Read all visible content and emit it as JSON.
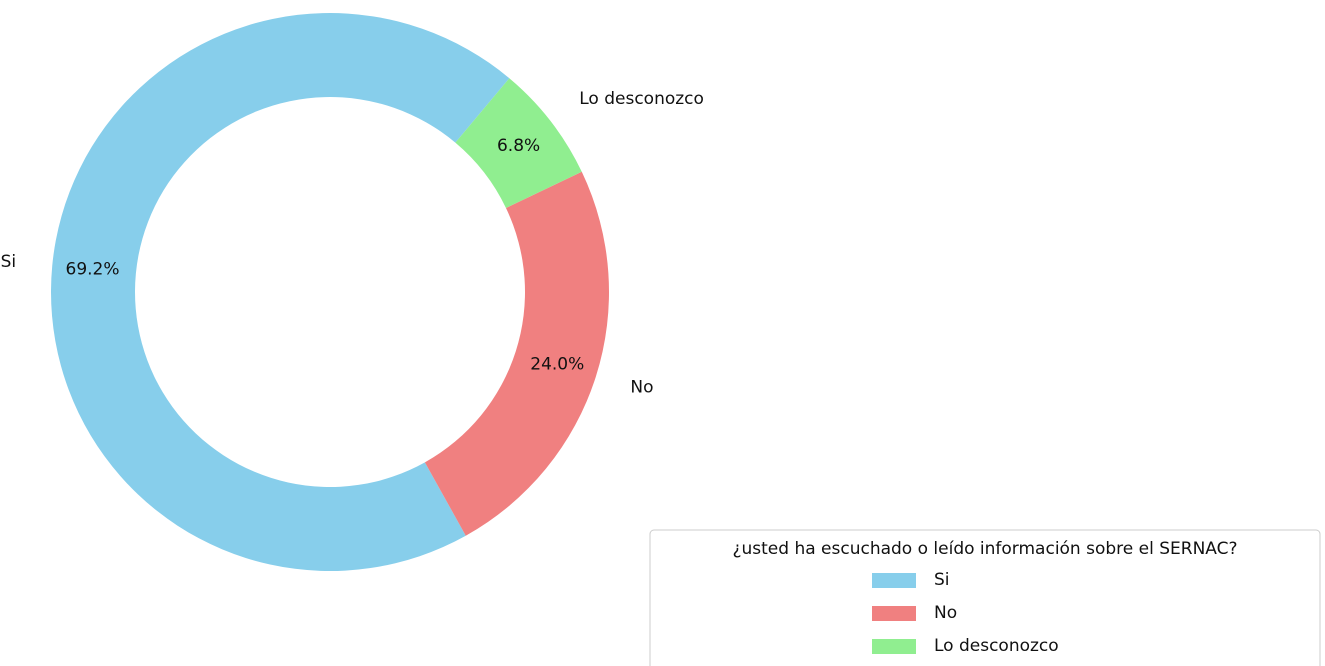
{
  "chart_data": {
    "type": "donut",
    "categories": [
      "Si",
      "No",
      "Lo desconozco"
    ],
    "values": [
      69.2,
      24.0,
      6.8
    ],
    "value_labels": [
      "69.2%",
      "24.0%",
      "6.8%"
    ],
    "colors": [
      "#87ceeb",
      "#f08080",
      "#90ee90"
    ],
    "legend_title": "¿usted ha escuchado o leído información sobre el SERNAC?",
    "legend": "lower right"
  }
}
